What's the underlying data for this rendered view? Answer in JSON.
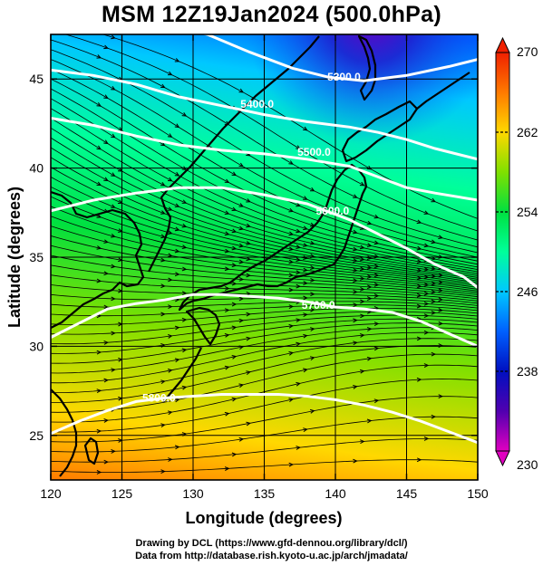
{
  "title": "MSM 12Z19Jan2024 (500.0hPa)",
  "x_axis": {
    "label": "Longitude (degrees)",
    "range": [
      120,
      150
    ],
    "ticks": [
      120,
      125,
      130,
      135,
      140,
      145,
      150
    ]
  },
  "y_axis": {
    "label": "Latitude  (degrees)",
    "range": [
      22.5,
      47.5
    ],
    "ticks": [
      25,
      30,
      35,
      40,
      45
    ]
  },
  "colorbar": {
    "range": [
      230,
      270
    ],
    "ticks": [
      230,
      238,
      246,
      254,
      262,
      270
    ],
    "colors": [
      "#e000c0",
      "#5000b0",
      "#0010c0",
      "#0060ff",
      "#00c8ff",
      "#00ff9a",
      "#00e040",
      "#80e000",
      "#ffd800",
      "#ff7a00",
      "#f02000"
    ]
  },
  "map": {
    "projection": "equirectangular",
    "grid": true,
    "fields": [
      "temperature (shaded)",
      "geopotential height (white contours)",
      "wind (streamlines)"
    ]
  },
  "contours": [
    {
      "label": "5300.0",
      "points": [
        [
          128.5,
          48.0
        ],
        [
          131,
          47.5
        ],
        [
          134,
          46.5
        ],
        [
          137,
          45.6
        ],
        [
          139.5,
          45.1
        ],
        [
          142,
          44.9
        ],
        [
          145,
          45.2
        ],
        [
          148,
          45.7
        ],
        [
          150,
          46.1
        ]
      ],
      "label_at": [
        140.6,
        45.1
      ]
    },
    {
      "label": "5400.0",
      "points": [
        [
          120,
          45.5
        ],
        [
          123,
          45.2
        ],
        [
          126,
          44.7
        ],
        [
          129,
          44.0
        ],
        [
          132,
          43.5
        ],
        [
          135,
          43.0
        ],
        [
          138,
          42.6
        ],
        [
          141,
          42.3
        ],
        [
          143,
          42.0
        ],
        [
          145,
          41.6
        ],
        [
          147,
          41.1
        ],
        [
          150,
          40.5
        ]
      ],
      "label_at": [
        134.5,
        43.6
      ]
    },
    {
      "label": "5500.0",
      "points": [
        [
          120,
          42.8
        ],
        [
          123,
          42.4
        ],
        [
          126,
          41.8
        ],
        [
          129,
          41.3
        ],
        [
          132,
          41.0
        ],
        [
          135,
          40.8
        ],
        [
          138,
          40.5
        ],
        [
          141,
          40.1
        ],
        [
          143,
          39.5
        ],
        [
          145,
          38.9
        ],
        [
          147,
          38.6
        ],
        [
          150,
          38.2
        ]
      ],
      "label_at": [
        138.5,
        40.9
      ]
    },
    {
      "label": "5600.0",
      "points": [
        [
          120,
          37.6
        ],
        [
          123,
          38.2
        ],
        [
          126,
          38.6
        ],
        [
          129,
          38.9
        ],
        [
          132,
          38.9
        ],
        [
          135,
          38.5
        ],
        [
          138,
          38.0
        ],
        [
          141,
          37.1
        ],
        [
          143,
          36.3
        ],
        [
          145,
          35.5
        ],
        [
          147,
          34.6
        ],
        [
          149,
          33.9
        ],
        [
          150,
          33.3
        ]
      ],
      "label_at": [
        139.8,
        37.6
      ]
    },
    {
      "label": "5700.0",
      "points": [
        [
          120,
          30.5
        ],
        [
          122,
          31.3
        ],
        [
          124,
          32.1
        ],
        [
          126,
          32.4
        ],
        [
          128,
          32.6
        ],
        [
          130,
          32.9
        ],
        [
          132,
          32.9
        ],
        [
          134,
          32.8
        ],
        [
          136,
          32.7
        ],
        [
          138,
          32.5
        ],
        [
          140,
          32.2
        ],
        [
          142,
          32.1
        ],
        [
          144,
          31.9
        ],
        [
          146,
          31.4
        ],
        [
          148,
          30.7
        ],
        [
          150,
          30.0
        ]
      ],
      "label_at": [
        138.8,
        32.3
      ]
    },
    {
      "label": "5800.0",
      "points": [
        [
          120,
          25.1
        ],
        [
          122,
          25.8
        ],
        [
          124,
          26.4
        ],
        [
          126,
          26.9
        ],
        [
          128,
          27.1
        ],
        [
          130,
          27.2
        ],
        [
          132,
          27.3
        ],
        [
          134,
          27.3
        ],
        [
          136,
          27.3
        ],
        [
          138,
          27.2
        ],
        [
          140,
          27.0
        ],
        [
          142,
          26.7
        ],
        [
          144,
          26.3
        ],
        [
          146,
          25.8
        ],
        [
          148,
          25.2
        ],
        [
          150,
          24.6
        ]
      ],
      "label_at": [
        127.6,
        27.1
      ]
    }
  ],
  "footer": {
    "line1": "Drawing by DCL (https://www.gfd-dennou.org/library/dcl/)",
    "line2": "Data from http://database.rish.kyoto-u.ac.jp/arch/jmadata/"
  }
}
